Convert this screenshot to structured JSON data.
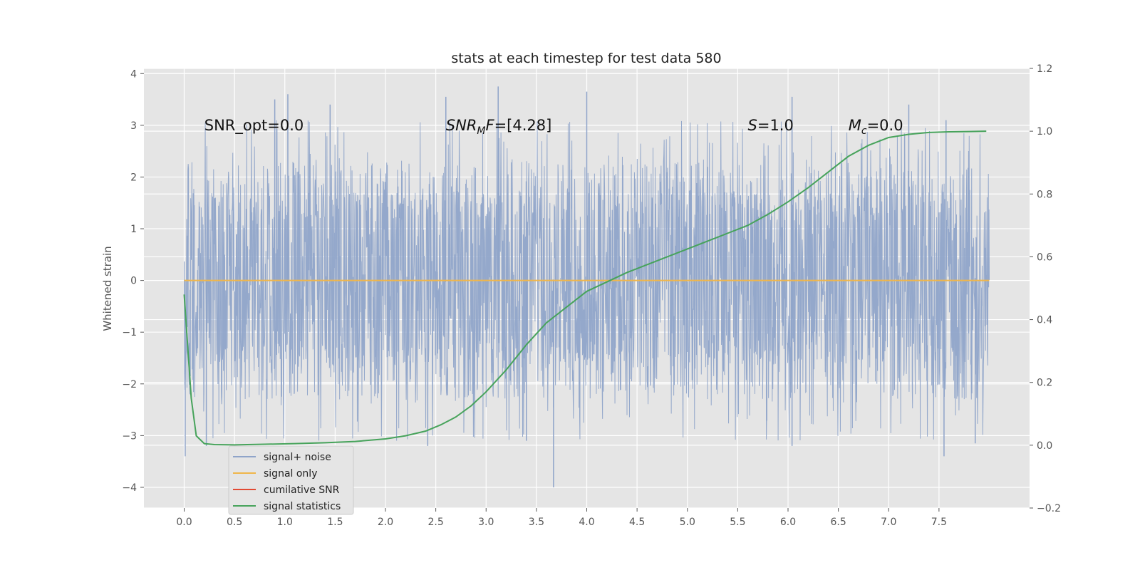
{
  "chart_data": {
    "type": "line",
    "title": "stats at each timestep for test data 580",
    "ylabel": "Whitened strain",
    "xlim": [
      -0.4,
      8.4
    ],
    "ylim": [
      -4.4,
      4.1
    ],
    "ylim_right": [
      -0.2,
      1.2
    ],
    "x_ticks": [
      0.0,
      0.5,
      1.0,
      1.5,
      2.0,
      2.5,
      3.0,
      3.5,
      4.0,
      4.5,
      5.0,
      5.5,
      6.0,
      6.5,
      7.0,
      7.5
    ],
    "x_tick_labels": [
      "0.0",
      "0.5",
      "1.0",
      "1.5",
      "2.0",
      "2.5",
      "3.0",
      "3.5",
      "4.0",
      "4.5",
      "5.0",
      "5.5",
      "6.0",
      "6.5",
      "7.0",
      "7.5"
    ],
    "y_ticks": [
      4,
      3,
      2,
      1,
      0,
      -1,
      -2,
      -3,
      -4
    ],
    "y_tick_labels": [
      "4",
      "3",
      "2",
      "1",
      "0",
      "−1",
      "−2",
      "−3",
      "−4"
    ],
    "y_ticks_right": [
      1.2,
      1.0,
      0.8,
      0.6,
      0.4,
      0.2,
      0.0,
      -0.2
    ],
    "y_tick_labels_right": [
      "1.2",
      "1.0",
      "0.8",
      "0.6",
      "0.4",
      "0.2",
      "0.0",
      "−0.2"
    ],
    "grid": true,
    "legend_position": "lower-left",
    "annotations": [
      {
        "text": "SNR_opt=0.0",
        "x": 0.2,
        "y": 3.0
      },
      {
        "text": "SNR",
        "sub": "M",
        "after": "F=[4.28]",
        "italic": true,
        "x": 2.6,
        "y": 3.0
      },
      {
        "text": "S",
        "after": "=1.0",
        "italic": true,
        "x": 5.6,
        "y": 3.0
      },
      {
        "text": "M",
        "sub": "c",
        "after": "=0.0",
        "italic": true,
        "x": 6.6,
        "y": 3.0
      }
    ],
    "series": [
      {
        "name": "signal+ noise",
        "color": "#8fa4c9",
        "kind": "noise",
        "x_range": [
          0.0,
          8.0
        ],
        "typical_range": [
          -1.6,
          1.7
        ],
        "extreme_range": [
          -4.0,
          3.75
        ],
        "spikes": [
          {
            "x": 0.01,
            "y": -3.4
          },
          {
            "x": 0.22,
            "y": -3.2
          },
          {
            "x": 0.9,
            "y": 3.5
          },
          {
            "x": 1.03,
            "y": 3.6
          },
          {
            "x": 1.45,
            "y": 3.4
          },
          {
            "x": 2.6,
            "y": 3.55
          },
          {
            "x": 2.42,
            "y": -3.2
          },
          {
            "x": 3.12,
            "y": 3.75
          },
          {
            "x": 3.4,
            "y": -3.1
          },
          {
            "x": 3.67,
            "y": -4.0
          },
          {
            "x": 4.0,
            "y": 3.65
          },
          {
            "x": 6.04,
            "y": 3.55
          },
          {
            "x": 6.04,
            "y": -3.2
          },
          {
            "x": 7.2,
            "y": 3.4
          },
          {
            "x": 7.55,
            "y": -3.4
          },
          {
            "x": 7.57,
            "y": 3.1
          },
          {
            "x": 7.86,
            "y": -3.15
          }
        ]
      },
      {
        "name": "signal only",
        "color": "#f0b64a",
        "x": [
          0.0,
          8.0
        ],
        "y": [
          0.0,
          0.0
        ]
      },
      {
        "name": "cumilative SNR",
        "color": "#e24a33",
        "x": [],
        "y": []
      },
      {
        "name": "signal statistics",
        "color": "#47a35b",
        "axis": "right",
        "x": [
          0.0,
          0.07,
          0.12,
          0.2,
          0.3,
          0.5,
          0.8,
          1.1,
          1.4,
          1.7,
          2.0,
          2.2,
          2.4,
          2.55,
          2.7,
          2.85,
          3.0,
          3.2,
          3.4,
          3.6,
          3.8,
          4.0,
          4.2,
          4.4,
          4.6,
          4.8,
          5.0,
          5.2,
          5.4,
          5.6,
          5.8,
          6.0,
          6.2,
          6.4,
          6.6,
          6.8,
          7.0,
          7.2,
          7.4,
          7.6,
          7.8,
          7.97
        ],
        "y": [
          0.48,
          0.15,
          0.03,
          0.005,
          0.002,
          0.001,
          0.003,
          0.005,
          0.008,
          0.012,
          0.02,
          0.03,
          0.045,
          0.065,
          0.09,
          0.125,
          0.17,
          0.24,
          0.32,
          0.39,
          0.44,
          0.49,
          0.52,
          0.55,
          0.575,
          0.6,
          0.625,
          0.65,
          0.675,
          0.7,
          0.735,
          0.775,
          0.82,
          0.87,
          0.92,
          0.955,
          0.98,
          0.99,
          0.996,
          0.998,
          0.999,
          1.0
        ]
      }
    ]
  }
}
